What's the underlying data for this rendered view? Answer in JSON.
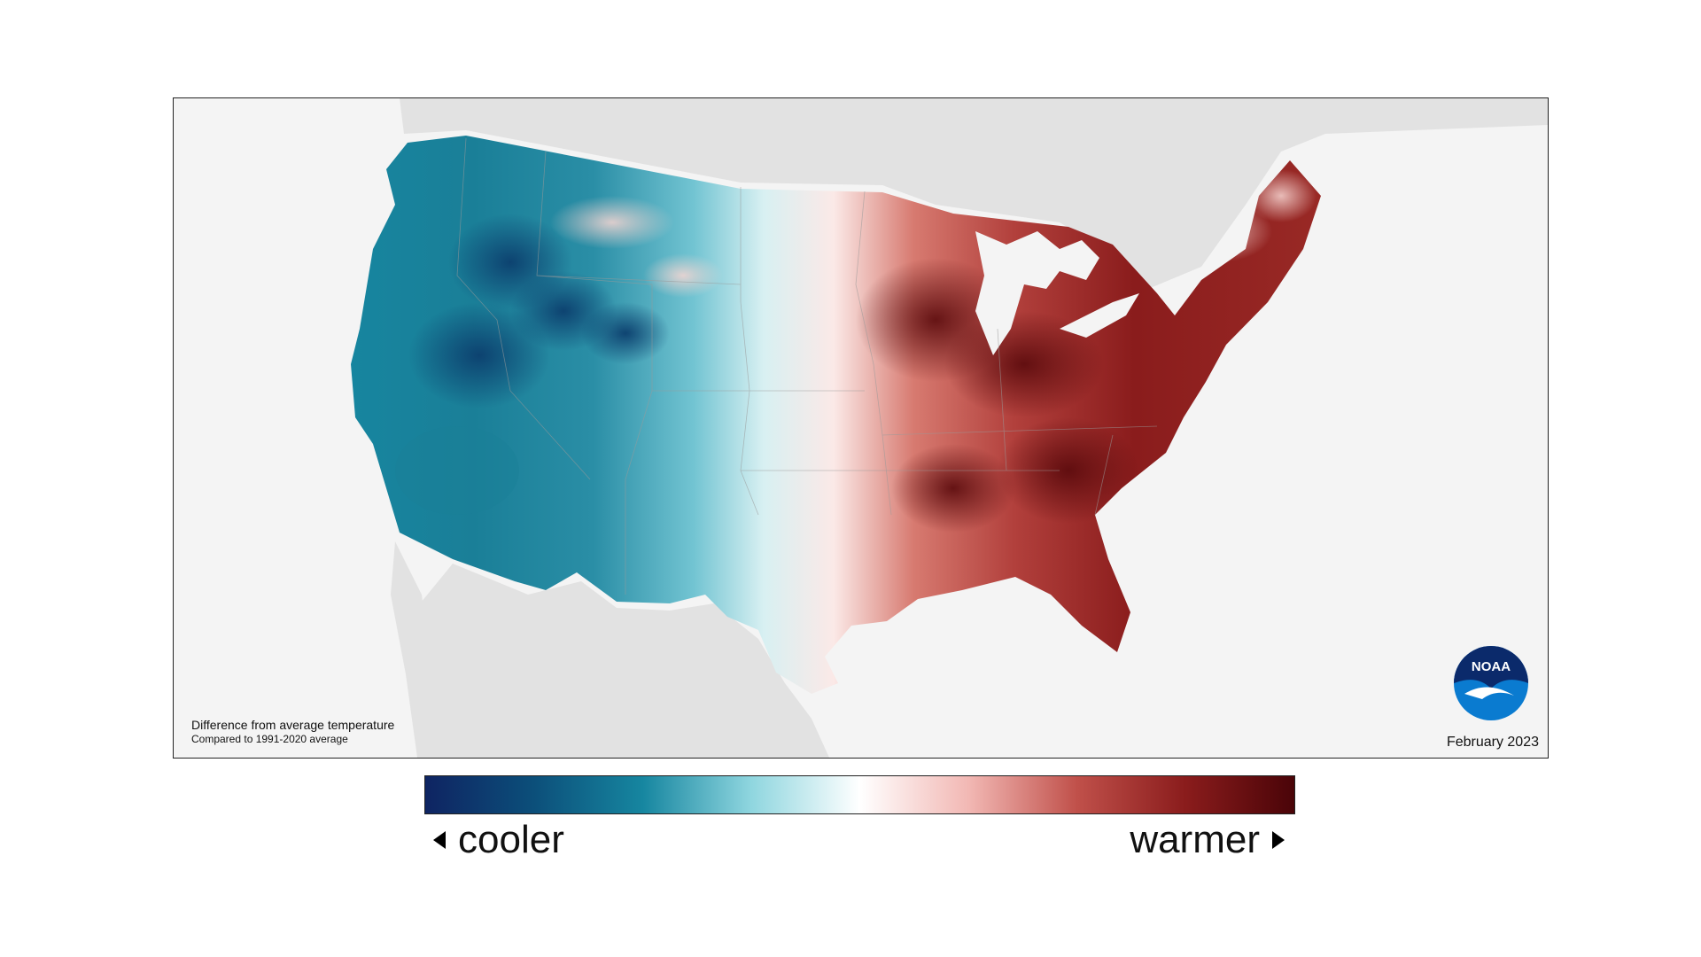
{
  "map": {
    "caption_title": "Difference from average temperature",
    "caption_subtitle": "Compared to 1991-2020 average",
    "date": "February 2023",
    "logo_text": "NOAA",
    "colors": {
      "ocean_bg": "#f4f4f4",
      "neighbor_land": "#e2e2e2",
      "coolest": "#0e2462",
      "cool": "#1a7b92",
      "neutral": "#ffffff",
      "warm": "#b2403c",
      "warmest": "#4a0408"
    }
  },
  "legend": {
    "low_label": "cooler",
    "high_label": "warmer",
    "gradient": [
      "#0e2462",
      "#0c4f7a",
      "#1686a0",
      "#8fd6df",
      "#ffffff",
      "#f2b8b4",
      "#c0504a",
      "#8a1c1c",
      "#4a0408"
    ]
  }
}
